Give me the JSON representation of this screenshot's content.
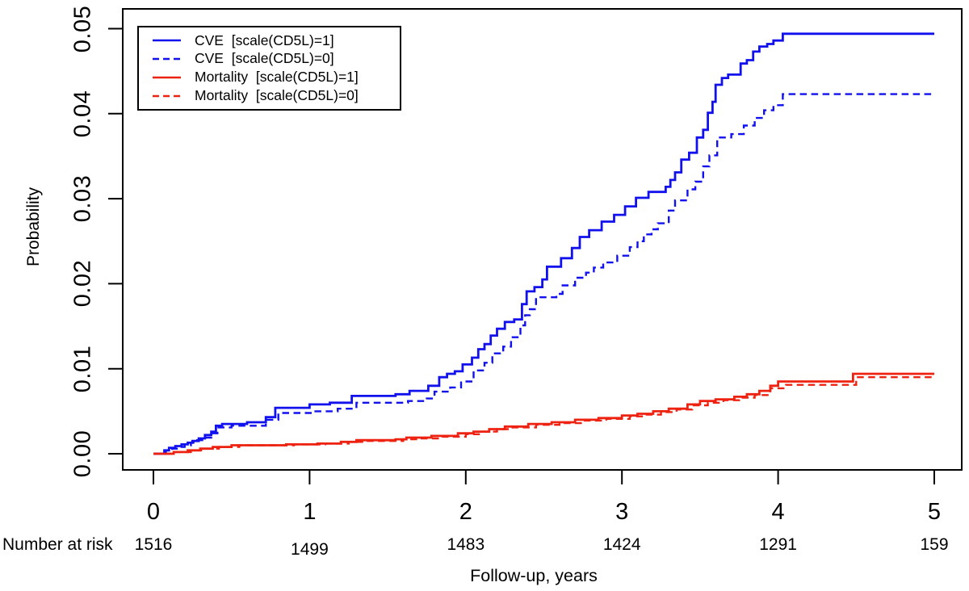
{
  "figure": {
    "title": "",
    "y_axis": {
      "label": "Probability",
      "ticks": [
        "0.00",
        "0.01",
        "0.02",
        "0.03",
        "0.04",
        "0.05"
      ]
    },
    "x_axis": {
      "label": "Follow-up, years",
      "ticks": [
        "0",
        "1",
        "2",
        "3",
        "4",
        "5"
      ]
    },
    "number_at_risk": {
      "label": "Number at risk",
      "values": [
        "1516",
        "1499",
        "1483",
        "1424",
        "1291",
        "159"
      ]
    },
    "legend": [
      {
        "id": "cve_cd5l_1",
        "label": "CVE  [scale(CD5L)=1]",
        "color": "#1111ee",
        "line": "solid"
      },
      {
        "id": "cve_cd5l_0",
        "label": "CVE  [scale(CD5L)=0]",
        "color": "#1111ee",
        "line": "dashed"
      },
      {
        "id": "mortality_cd5l_1",
        "label": "Mortality  [scale(CD5L)=1]",
        "color": "#ee2211",
        "line": "solid"
      },
      {
        "id": "mortality_cd5l_0",
        "label": "Mortality  [scale(CD5L)=0]",
        "color": "#ee2211",
        "line": "dashed"
      }
    ],
    "colors": {
      "cve": "#1111ee",
      "mortality": "#ee2211",
      "axis": "#000000",
      "background": "#ffffff"
    }
  },
  "chart_data": {
    "type": "line",
    "subtype": "step-function cumulative incidence",
    "title": "",
    "xlabel": "Follow-up, years",
    "ylabel": "Probability",
    "xlim": [
      0,
      5
    ],
    "ylim": [
      0,
      0.05
    ],
    "x_ticks": [
      0,
      1,
      2,
      3,
      4,
      5
    ],
    "y_ticks": [
      0,
      0.01,
      0.02,
      0.03,
      0.04,
      0.05
    ],
    "grid": false,
    "legend_position": "top-left",
    "number_at_risk": {
      "label": "Number at risk",
      "times": [
        0,
        1,
        2,
        3,
        4,
        5
      ],
      "values": [
        1516,
        1499,
        1483,
        1424,
        1291,
        159
      ]
    },
    "series": [
      {
        "id": "cve_cd5l_1",
        "name": "CVE [scale(CD5L)=1]",
        "color": "#1111ee",
        "line": "solid",
        "points": [
          [
            0,
            0
          ],
          [
            0.07,
            0.0004
          ],
          [
            0.1,
            0.0007
          ],
          [
            0.14,
            0.0009
          ],
          [
            0.18,
            0.0011
          ],
          [
            0.22,
            0.0013
          ],
          [
            0.25,
            0.0015
          ],
          [
            0.29,
            0.0018
          ],
          [
            0.33,
            0.0022
          ],
          [
            0.37,
            0.0026
          ],
          [
            0.4,
            0.0033
          ],
          [
            0.44,
            0.0035
          ],
          [
            0.6,
            0.0037
          ],
          [
            0.72,
            0.0043
          ],
          [
            0.78,
            0.0054
          ],
          [
            1.0,
            0.0058
          ],
          [
            1.13,
            0.006
          ],
          [
            1.27,
            0.0068
          ],
          [
            1.55,
            0.007
          ],
          [
            1.64,
            0.0074
          ],
          [
            1.76,
            0.008
          ],
          [
            1.83,
            0.009
          ],
          [
            1.88,
            0.0094
          ],
          [
            1.93,
            0.0097
          ],
          [
            1.98,
            0.0105
          ],
          [
            2.04,
            0.0113
          ],
          [
            2.08,
            0.0123
          ],
          [
            2.12,
            0.0129
          ],
          [
            2.16,
            0.0139
          ],
          [
            2.2,
            0.0147
          ],
          [
            2.25,
            0.0155
          ],
          [
            2.31,
            0.0158
          ],
          [
            2.36,
            0.0176
          ],
          [
            2.39,
            0.0191
          ],
          [
            2.44,
            0.0196
          ],
          [
            2.49,
            0.0205
          ],
          [
            2.52,
            0.022
          ],
          [
            2.61,
            0.023
          ],
          [
            2.68,
            0.0242
          ],
          [
            2.73,
            0.0255
          ],
          [
            2.79,
            0.0263
          ],
          [
            2.87,
            0.0273
          ],
          [
            2.95,
            0.0281
          ],
          [
            3.02,
            0.0291
          ],
          [
            3.09,
            0.0301
          ],
          [
            3.17,
            0.0308
          ],
          [
            3.28,
            0.0314
          ],
          [
            3.31,
            0.0322
          ],
          [
            3.34,
            0.0331
          ],
          [
            3.38,
            0.0346
          ],
          [
            3.43,
            0.0354
          ],
          [
            3.48,
            0.0372
          ],
          [
            3.52,
            0.0381
          ],
          [
            3.55,
            0.0401
          ],
          [
            3.58,
            0.0414
          ],
          [
            3.6,
            0.0434
          ],
          [
            3.64,
            0.0442
          ],
          [
            3.68,
            0.0446
          ],
          [
            3.76,
            0.0459
          ],
          [
            3.8,
            0.0463
          ],
          [
            3.84,
            0.0473
          ],
          [
            3.88,
            0.0479
          ],
          [
            3.93,
            0.0482
          ],
          [
            3.97,
            0.0486
          ],
          [
            4.03,
            0.0494
          ],
          [
            5.0,
            0.0494
          ]
        ]
      },
      {
        "id": "cve_cd5l_0",
        "name": "CVE [scale(CD5L)=0]",
        "color": "#1111ee",
        "line": "dashed",
        "points": [
          [
            0,
            0
          ],
          [
            0.08,
            0.0004
          ],
          [
            0.12,
            0.0006
          ],
          [
            0.16,
            0.0008
          ],
          [
            0.2,
            0.001
          ],
          [
            0.24,
            0.0013
          ],
          [
            0.28,
            0.0016
          ],
          [
            0.33,
            0.0019
          ],
          [
            0.37,
            0.0024
          ],
          [
            0.41,
            0.0031
          ],
          [
            0.5,
            0.0033
          ],
          [
            0.72,
            0.004
          ],
          [
            0.8,
            0.0048
          ],
          [
            1.02,
            0.005
          ],
          [
            1.18,
            0.0053
          ],
          [
            1.3,
            0.006
          ],
          [
            1.63,
            0.0062
          ],
          [
            1.75,
            0.0065
          ],
          [
            1.8,
            0.0073
          ],
          [
            1.9,
            0.0078
          ],
          [
            1.97,
            0.0085
          ],
          [
            2.05,
            0.0098
          ],
          [
            2.12,
            0.0107
          ],
          [
            2.17,
            0.0118
          ],
          [
            2.24,
            0.0126
          ],
          [
            2.29,
            0.0137
          ],
          [
            2.35,
            0.0151
          ],
          [
            2.38,
            0.0163
          ],
          [
            2.41,
            0.017
          ],
          [
            2.45,
            0.0184
          ],
          [
            2.58,
            0.0188
          ],
          [
            2.62,
            0.0198
          ],
          [
            2.7,
            0.0207
          ],
          [
            2.77,
            0.0213
          ],
          [
            2.82,
            0.0219
          ],
          [
            2.88,
            0.0225
          ],
          [
            2.97,
            0.0233
          ],
          [
            3.05,
            0.0243
          ],
          [
            3.1,
            0.025
          ],
          [
            3.14,
            0.0258
          ],
          [
            3.19,
            0.0264
          ],
          [
            3.23,
            0.0271
          ],
          [
            3.3,
            0.0286
          ],
          [
            3.34,
            0.0298
          ],
          [
            3.42,
            0.0311
          ],
          [
            3.47,
            0.032
          ],
          [
            3.52,
            0.0338
          ],
          [
            3.56,
            0.0351
          ],
          [
            3.61,
            0.0372
          ],
          [
            3.7,
            0.0376
          ],
          [
            3.78,
            0.0386
          ],
          [
            3.85,
            0.0395
          ],
          [
            3.91,
            0.0404
          ],
          [
            3.97,
            0.041
          ],
          [
            4.03,
            0.0423
          ],
          [
            5.0,
            0.0423
          ]
        ]
      },
      {
        "id": "mortality_cd5l_1",
        "name": "Mortality [scale(CD5L)=1]",
        "color": "#ee2211",
        "line": "solid",
        "points": [
          [
            0,
            0
          ],
          [
            0.13,
            0.0002
          ],
          [
            0.22,
            0.0004
          ],
          [
            0.3,
            0.0006
          ],
          [
            0.38,
            0.0008
          ],
          [
            0.5,
            0.001
          ],
          [
            0.85,
            0.0011
          ],
          [
            1.05,
            0.0012
          ],
          [
            1.2,
            0.0014
          ],
          [
            1.3,
            0.0016
          ],
          [
            1.55,
            0.0017
          ],
          [
            1.62,
            0.0019
          ],
          [
            1.78,
            0.0021
          ],
          [
            1.95,
            0.0024
          ],
          [
            2.05,
            0.0026
          ],
          [
            2.15,
            0.0029
          ],
          [
            2.25,
            0.0032
          ],
          [
            2.4,
            0.0035
          ],
          [
            2.55,
            0.0037
          ],
          [
            2.7,
            0.004
          ],
          [
            2.85,
            0.0042
          ],
          [
            3.0,
            0.0045
          ],
          [
            3.1,
            0.0047
          ],
          [
            3.2,
            0.005
          ],
          [
            3.3,
            0.0053
          ],
          [
            3.42,
            0.0058
          ],
          [
            3.5,
            0.0062
          ],
          [
            3.6,
            0.0064
          ],
          [
            3.72,
            0.0067
          ],
          [
            3.8,
            0.007
          ],
          [
            3.88,
            0.0074
          ],
          [
            3.95,
            0.008
          ],
          [
            4.0,
            0.0085
          ],
          [
            4.48,
            0.0094
          ],
          [
            5.0,
            0.0094
          ]
        ]
      },
      {
        "id": "mortality_cd5l_0",
        "name": "Mortality [scale(CD5L)=0]",
        "color": "#ee2211",
        "line": "dashed",
        "points": [
          [
            0,
            0
          ],
          [
            0.14,
            0.0002
          ],
          [
            0.24,
            0.0004
          ],
          [
            0.33,
            0.0006
          ],
          [
            0.42,
            0.0008
          ],
          [
            0.55,
            0.001
          ],
          [
            0.9,
            0.0011
          ],
          [
            1.1,
            0.0012
          ],
          [
            1.25,
            0.0014
          ],
          [
            1.35,
            0.0015
          ],
          [
            1.6,
            0.0017
          ],
          [
            1.7,
            0.0018
          ],
          [
            1.85,
            0.002
          ],
          [
            2.0,
            0.0023
          ],
          [
            2.1,
            0.0026
          ],
          [
            2.2,
            0.0029
          ],
          [
            2.3,
            0.0031
          ],
          [
            2.45,
            0.0034
          ],
          [
            2.6,
            0.0036
          ],
          [
            2.75,
            0.0039
          ],
          [
            2.9,
            0.0041
          ],
          [
            3.05,
            0.0044
          ],
          [
            3.15,
            0.0046
          ],
          [
            3.25,
            0.0049
          ],
          [
            3.35,
            0.0052
          ],
          [
            3.45,
            0.0057
          ],
          [
            3.55,
            0.006
          ],
          [
            3.65,
            0.0063
          ],
          [
            3.75,
            0.0066
          ],
          [
            3.85,
            0.0069
          ],
          [
            3.95,
            0.0077
          ],
          [
            4.05,
            0.0081
          ],
          [
            4.5,
            0.009
          ],
          [
            5.0,
            0.009
          ]
        ]
      }
    ]
  }
}
